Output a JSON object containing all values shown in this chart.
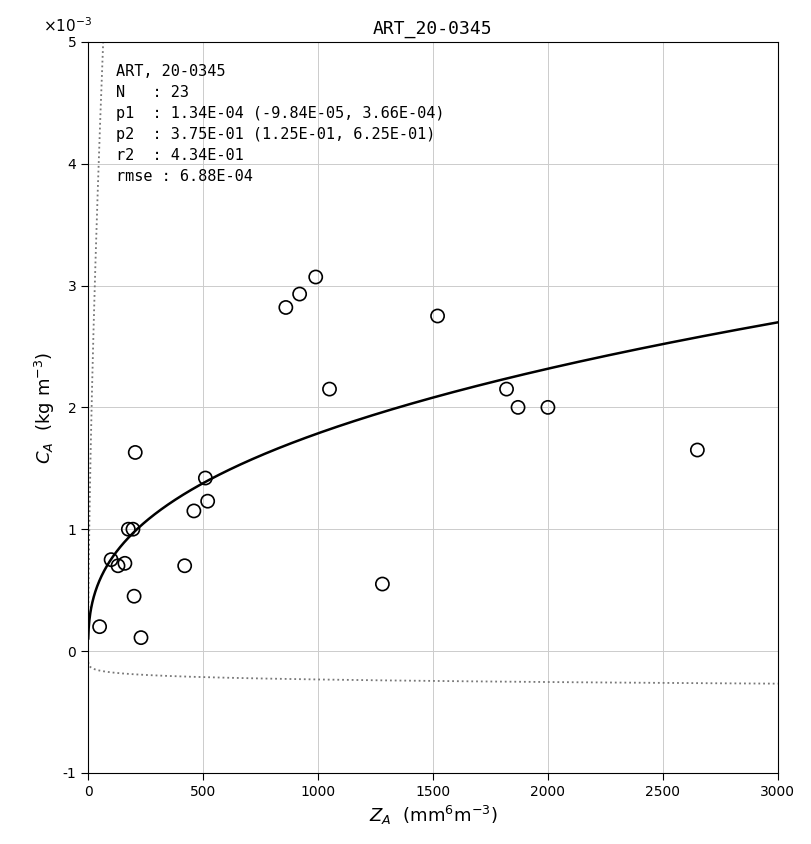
{
  "title": "ART_20-0345",
  "xlim": [
    0,
    3000
  ],
  "ylim": [
    -0.001,
    0.005
  ],
  "p1": 0.000134,
  "p2": 0.375,
  "p1_lo": -9.84e-05,
  "p1_hi": 0.000366,
  "p2_lo": 0.125,
  "p2_hi": 0.625,
  "scatter_x": [
    50,
    100,
    130,
    160,
    175,
    195,
    200,
    205,
    230,
    420,
    460,
    510,
    520,
    860,
    920,
    990,
    1050,
    1280,
    1520,
    1820,
    1870,
    2000,
    2650
  ],
  "scatter_y": [
    0.0002,
    0.00075,
    0.0007,
    0.00072,
    0.001,
    0.001,
    0.00045,
    0.00163,
    0.00011,
    0.0007,
    0.00115,
    0.00142,
    0.00123,
    0.00282,
    0.00293,
    0.00307,
    0.00215,
    0.00055,
    0.00275,
    0.00215,
    0.002,
    0.002,
    0.00165
  ],
  "line_color": "#000000",
  "scatter_facecolor": "none",
  "scatter_edgecolor": "#000000",
  "ci_color": "#777777",
  "grid_color": "#cccccc",
  "background_color": "#ffffff",
  "annotation_lines": [
    "ART, 20-0345",
    "N   : 23",
    "p1  : 1.34E-04 (-9.84E-05, 3.66E-04)",
    "p2  : 3.75E-01 (1.25E-01, 6.25E-01)",
    "r2  : 4.34E-01",
    "rmse : 6.88E-04"
  ]
}
